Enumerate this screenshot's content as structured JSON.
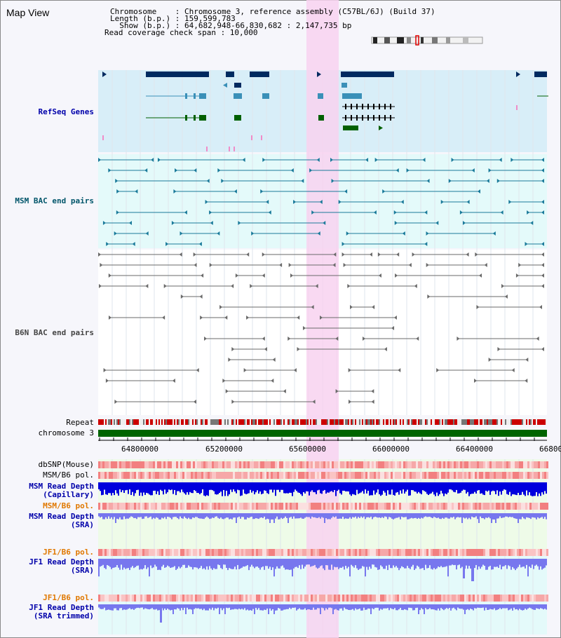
{
  "panel": {
    "title": "Map View"
  },
  "header": {
    "chromosome_line": "Chromosome    : Chromosome 3, reference assembly (C57BL/6J) (Build 37)",
    "length_line": "Length (b.p.) : 159,599,783",
    "show_line": "  Show (b.p.) : 64,682,948-66,830,682 : 2,147,735 bp",
    "coverage_line": "Read coverage check span : 10,000"
  },
  "tracks": {
    "refseq": {
      "label": "RefSeq Genes",
      "color": "#0000aa"
    },
    "msm_bac": {
      "label": "MSM BAC end pairs",
      "color": "#00556a"
    },
    "b6n_bac": {
      "label": "B6N BAC end pairs",
      "color": "#444444"
    },
    "repeat": {
      "label": "Repeat"
    },
    "chromosome": {
      "label": "chromosome 3"
    },
    "dbsnp": {
      "label": "dbSNP(Mouse)"
    },
    "msm_b6_pol_1": {
      "label": "MSM/B6 pol."
    },
    "msm_depth_cap": {
      "label": "MSM Read Depth\n(Capillary)",
      "color": "#0000aa"
    },
    "msm_b6_pol_2": {
      "label": "MSM/B6 pol.",
      "color": "#e07800"
    },
    "msm_depth_sra": {
      "label": "MSM Read Depth\n(SRA)",
      "color": "#0000aa"
    },
    "jf1_b6_pol_1": {
      "label": "JF1/B6 pol.",
      "color": "#e07800"
    },
    "jf1_depth_sra": {
      "label": "JF1 Read Depth\n(SRA)",
      "color": "#0000aa"
    },
    "jf1_b6_pol_2": {
      "label": "JF1/B6 pol.",
      "color": "#e07800"
    },
    "jf1_depth_trim": {
      "label": "JF1 Read Depth\n(SRA trimmed)",
      "color": "#0000aa"
    }
  },
  "axis": {
    "ticks": [
      "64800000",
      "65200000",
      "65600000",
      "66000000",
      "66400000",
      "66800"
    ]
  },
  "colors": {
    "highlight": "#f8d2f0",
    "refseq_bg": "#d8eef8",
    "msm_bg": "#e4fafa",
    "gene_dark": "#002a60",
    "gene_mid": "#3a90b8",
    "gene_green": "#006000",
    "msm_line": "#1a7a9a",
    "b6n_line": "#6a6a6a",
    "chromosome_bar": "#006400",
    "depth_dark": "#0000dd",
    "depth_light": "#7777ee"
  }
}
